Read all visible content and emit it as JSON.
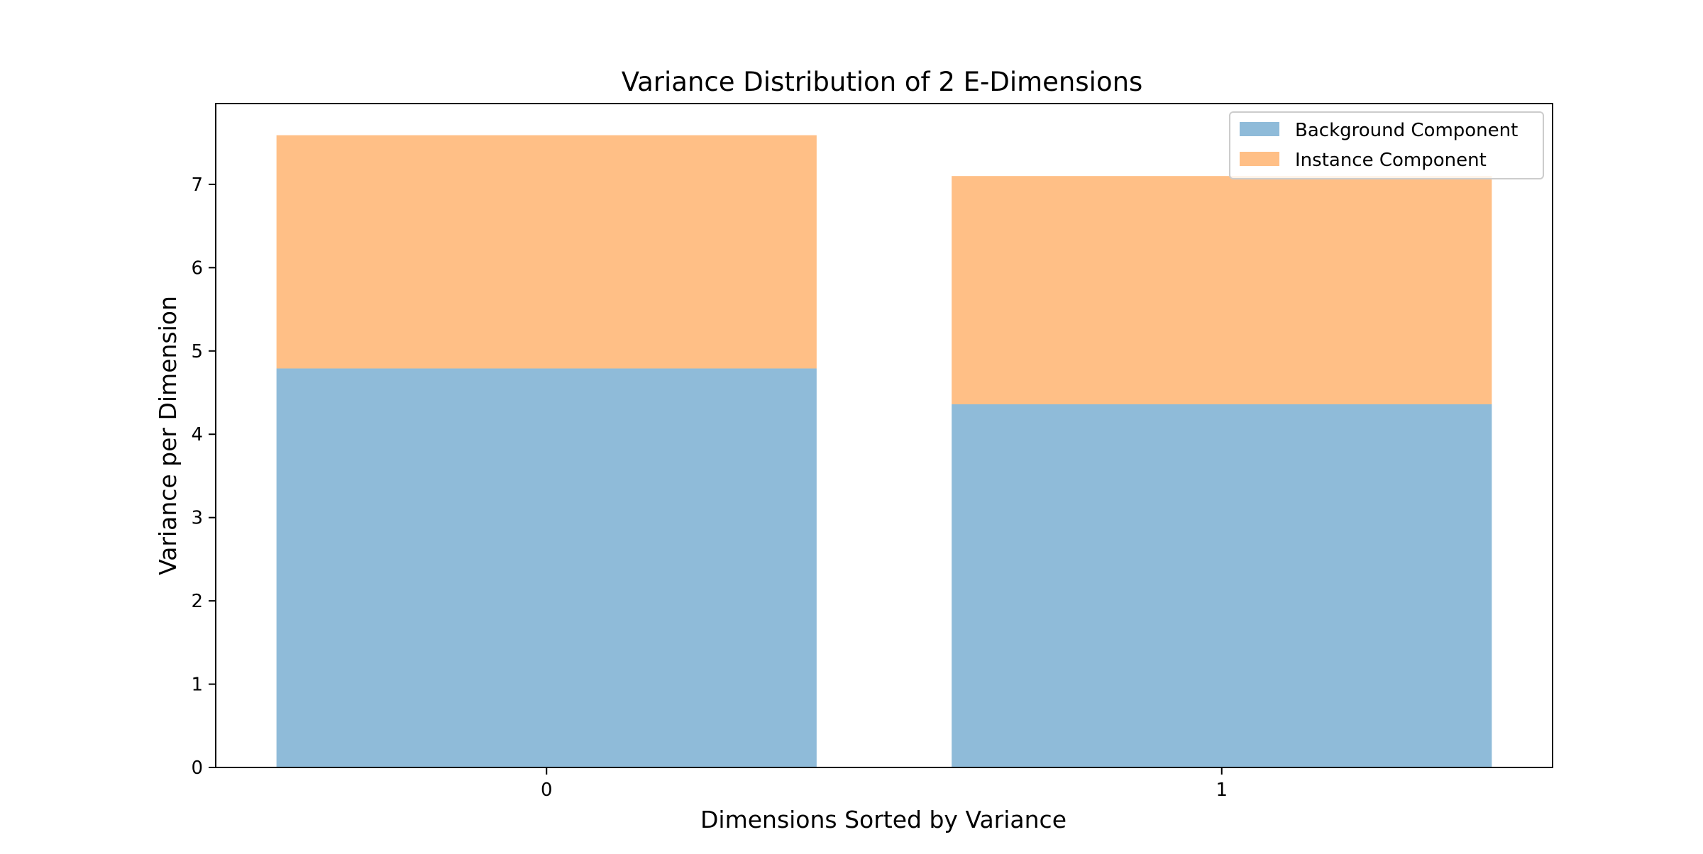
{
  "chart_data": {
    "type": "bar",
    "stacked": true,
    "title": "Variance Distribution of 2 E-Dimensions",
    "xlabel": "Dimensions Sorted by Variance",
    "ylabel": "Variance per Dimension",
    "categories": [
      "0",
      "1"
    ],
    "series": [
      {
        "name": "Background Component",
        "values": [
          4.79,
          4.36
        ],
        "color": "#1f77b4"
      },
      {
        "name": "Instance Component",
        "values": [
          2.8,
          2.74
        ],
        "color": "#ff7f0e"
      }
    ],
    "bar_opacity": 0.5,
    "ylim": [
      0,
      7.97
    ],
    "yticks": [
      0,
      1,
      2,
      3,
      4,
      5,
      6,
      7
    ],
    "grid": false,
    "legend_position": "upper right"
  }
}
